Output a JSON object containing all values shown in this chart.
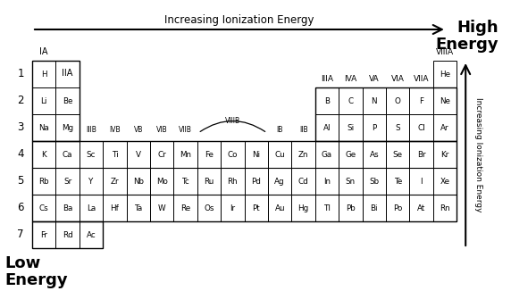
{
  "title_top_right": "High\nEnergy",
  "title_bottom_left": "Low\nEnergy",
  "arrow_top_label": "Increasing Ionization Energy",
  "arrow_right_label": "Increasing Ionization Energy",
  "elements": [
    {
      "symbol": "H",
      "row": 1,
      "col": 0,
      "boxed": true
    },
    {
      "symbol": "He",
      "row": 1,
      "col": 17,
      "boxed": true
    },
    {
      "symbol": "Li",
      "row": 2,
      "col": 0,
      "boxed": true
    },
    {
      "symbol": "Be",
      "row": 2,
      "col": 1,
      "boxed": true
    },
    {
      "symbol": "B",
      "row": 2,
      "col": 12,
      "boxed": true
    },
    {
      "symbol": "C",
      "row": 2,
      "col": 13,
      "boxed": true
    },
    {
      "symbol": "N",
      "row": 2,
      "col": 14,
      "boxed": true
    },
    {
      "symbol": "O",
      "row": 2,
      "col": 15,
      "boxed": true
    },
    {
      "symbol": "F",
      "row": 2,
      "col": 16,
      "boxed": true
    },
    {
      "symbol": "Ne",
      "row": 2,
      "col": 17,
      "boxed": true
    },
    {
      "symbol": "Na",
      "row": 3,
      "col": 0,
      "boxed": true
    },
    {
      "symbol": "Mg",
      "row": 3,
      "col": 1,
      "boxed": true
    },
    {
      "symbol": "Al",
      "row": 3,
      "col": 12,
      "boxed": true
    },
    {
      "symbol": "Si",
      "row": 3,
      "col": 13,
      "boxed": true
    },
    {
      "symbol": "P",
      "row": 3,
      "col": 14,
      "boxed": true
    },
    {
      "symbol": "S",
      "row": 3,
      "col": 15,
      "boxed": true
    },
    {
      "symbol": "Cl",
      "row": 3,
      "col": 16,
      "boxed": true
    },
    {
      "symbol": "Ar",
      "row": 3,
      "col": 17,
      "boxed": true
    },
    {
      "symbol": "K",
      "row": 4,
      "col": 0,
      "boxed": true
    },
    {
      "symbol": "Ca",
      "row": 4,
      "col": 1,
      "boxed": true
    },
    {
      "symbol": "Sc",
      "row": 4,
      "col": 2,
      "boxed": true
    },
    {
      "symbol": "Ti",
      "row": 4,
      "col": 3,
      "boxed": true
    },
    {
      "symbol": "V",
      "row": 4,
      "col": 4,
      "boxed": true
    },
    {
      "symbol": "Cr",
      "row": 4,
      "col": 5,
      "boxed": true
    },
    {
      "symbol": "Mn",
      "row": 4,
      "col": 6,
      "boxed": true
    },
    {
      "symbol": "Fe",
      "row": 4,
      "col": 7,
      "boxed": true
    },
    {
      "symbol": "Co",
      "row": 4,
      "col": 8,
      "boxed": true
    },
    {
      "symbol": "Ni",
      "row": 4,
      "col": 9,
      "boxed": true
    },
    {
      "symbol": "Cu",
      "row": 4,
      "col": 10,
      "boxed": true
    },
    {
      "symbol": "Zn",
      "row": 4,
      "col": 11,
      "boxed": true
    },
    {
      "symbol": "Ga",
      "row": 4,
      "col": 12,
      "boxed": true
    },
    {
      "symbol": "Ge",
      "row": 4,
      "col": 13,
      "boxed": true
    },
    {
      "symbol": "As",
      "row": 4,
      "col": 14,
      "boxed": true
    },
    {
      "symbol": "Se",
      "row": 4,
      "col": 15,
      "boxed": true
    },
    {
      "symbol": "Br",
      "row": 4,
      "col": 16,
      "boxed": true
    },
    {
      "symbol": "Kr",
      "row": 4,
      "col": 17,
      "boxed": true
    },
    {
      "symbol": "Rb",
      "row": 5,
      "col": 0,
      "boxed": true
    },
    {
      "symbol": "Sr",
      "row": 5,
      "col": 1,
      "boxed": true
    },
    {
      "symbol": "Y",
      "row": 5,
      "col": 2,
      "boxed": true
    },
    {
      "symbol": "Zr",
      "row": 5,
      "col": 3,
      "boxed": true
    },
    {
      "symbol": "Nb",
      "row": 5,
      "col": 4,
      "boxed": true
    },
    {
      "symbol": "Mo",
      "row": 5,
      "col": 5,
      "boxed": true
    },
    {
      "symbol": "Tc",
      "row": 5,
      "col": 6,
      "boxed": true
    },
    {
      "symbol": "Ru",
      "row": 5,
      "col": 7,
      "boxed": true
    },
    {
      "symbol": "Rh",
      "row": 5,
      "col": 8,
      "boxed": true
    },
    {
      "symbol": "Pd",
      "row": 5,
      "col": 9,
      "boxed": true
    },
    {
      "symbol": "Ag",
      "row": 5,
      "col": 10,
      "boxed": true
    },
    {
      "symbol": "Cd",
      "row": 5,
      "col": 11,
      "boxed": true
    },
    {
      "symbol": "In",
      "row": 5,
      "col": 12,
      "boxed": true
    },
    {
      "symbol": "Sn",
      "row": 5,
      "col": 13,
      "boxed": true
    },
    {
      "symbol": "Sb",
      "row": 5,
      "col": 14,
      "boxed": true
    },
    {
      "symbol": "Te",
      "row": 5,
      "col": 15,
      "boxed": true
    },
    {
      "symbol": "I",
      "row": 5,
      "col": 16,
      "boxed": true
    },
    {
      "symbol": "Xe",
      "row": 5,
      "col": 17,
      "boxed": true
    },
    {
      "symbol": "Cs",
      "row": 6,
      "col": 0,
      "boxed": true
    },
    {
      "symbol": "Ba",
      "row": 6,
      "col": 1,
      "boxed": true
    },
    {
      "symbol": "La",
      "row": 6,
      "col": 2,
      "boxed": true
    },
    {
      "symbol": "Hf",
      "row": 6,
      "col": 3,
      "boxed": true
    },
    {
      "symbol": "Ta",
      "row": 6,
      "col": 4,
      "boxed": true
    },
    {
      "symbol": "W",
      "row": 6,
      "col": 5,
      "boxed": true
    },
    {
      "symbol": "Re",
      "row": 6,
      "col": 6,
      "boxed": true
    },
    {
      "symbol": "Os",
      "row": 6,
      "col": 7,
      "boxed": true
    },
    {
      "symbol": "Ir",
      "row": 6,
      "col": 8,
      "boxed": true
    },
    {
      "symbol": "Pt",
      "row": 6,
      "col": 9,
      "boxed": true
    },
    {
      "symbol": "Au",
      "row": 6,
      "col": 10,
      "boxed": true
    },
    {
      "symbol": "Hg",
      "row": 6,
      "col": 11,
      "boxed": true
    },
    {
      "symbol": "Tl",
      "row": 6,
      "col": 12,
      "boxed": true
    },
    {
      "symbol": "Pb",
      "row": 6,
      "col": 13,
      "boxed": true
    },
    {
      "symbol": "Bi",
      "row": 6,
      "col": 14,
      "boxed": true
    },
    {
      "symbol": "Po",
      "row": 6,
      "col": 15,
      "boxed": true
    },
    {
      "symbol": "At",
      "row": 6,
      "col": 16,
      "boxed": true
    },
    {
      "symbol": "Rn",
      "row": 6,
      "col": 17,
      "boxed": true
    },
    {
      "symbol": "Fr",
      "row": 7,
      "col": 0,
      "boxed": true
    },
    {
      "symbol": "Rd",
      "row": 7,
      "col": 1,
      "boxed": true
    },
    {
      "symbol": "Ac",
      "row": 7,
      "col": 2,
      "boxed": true
    }
  ],
  "bg_color": "#ffffff"
}
